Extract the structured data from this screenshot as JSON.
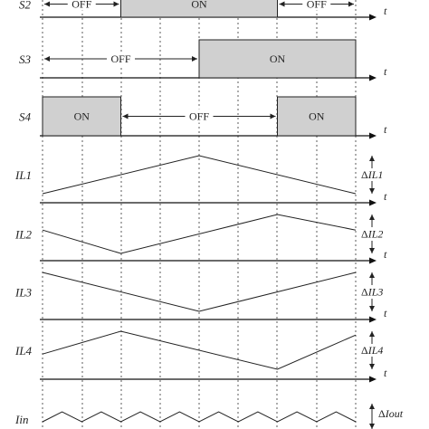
{
  "time_label": "t",
  "switches": [
    {
      "name": "S2",
      "segments": [
        {
          "state": "OFF",
          "on": false,
          "from": 0,
          "to": 1
        },
        {
          "state": "ON",
          "on": true,
          "from": 1,
          "to": 3
        },
        {
          "state": "OFF",
          "on": false,
          "from": 3,
          "to": 4
        }
      ]
    },
    {
      "name": "S3",
      "segments": [
        {
          "state": "OFF",
          "on": false,
          "from": 0,
          "to": 2
        },
        {
          "state": "ON",
          "on": true,
          "from": 2,
          "to": 4
        }
      ]
    },
    {
      "name": "S4",
      "segments": [
        {
          "state": "ON",
          "on": true,
          "from": 0,
          "to": 1
        },
        {
          "state": "OFF",
          "on": false,
          "from": 1,
          "to": 3
        },
        {
          "state": "ON",
          "on": true,
          "from": 3,
          "to": 4
        }
      ]
    }
  ],
  "currents": [
    {
      "name": "IL1",
      "ripple_label": "ΔIL1",
      "points": [
        [
          0,
          0
        ],
        [
          2,
          1
        ],
        [
          4,
          0
        ]
      ]
    },
    {
      "name": "IL2",
      "ripple_label": "ΔIL2",
      "points": [
        [
          0,
          0.6
        ],
        [
          1,
          0
        ],
        [
          3,
          1
        ],
        [
          4,
          0.6
        ]
      ]
    },
    {
      "name": "IL3",
      "ripple_label": "ΔIL3",
      "points": [
        [
          0,
          1
        ],
        [
          2,
          0
        ],
        [
          4,
          1
        ]
      ]
    },
    {
      "name": "IL4",
      "ripple_label": "ΔIL4",
      "points": [
        [
          0,
          0.4
        ],
        [
          1,
          1
        ],
        [
          3,
          0
        ],
        [
          4,
          0.9
        ]
      ]
    }
  ],
  "input": {
    "name": "Iin",
    "ripple_label": "ΔIout",
    "teeth": 8
  }
}
